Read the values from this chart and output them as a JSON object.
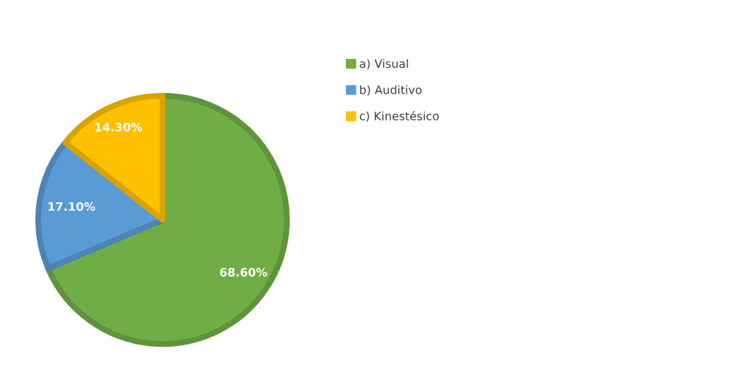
{
  "chart_data": {
    "type": "pie",
    "categories": [
      "a) Visual",
      "b) Auditivo",
      "c) Kinestésico"
    ],
    "values": [
      68.6,
      17.1,
      14.3
    ],
    "colors": [
      "#70ad47",
      "#5b9bd5",
      "#ffc000"
    ],
    "value_labels": [
      "68.60%",
      "17.10%",
      "14.30%"
    ],
    "legend": "right"
  }
}
